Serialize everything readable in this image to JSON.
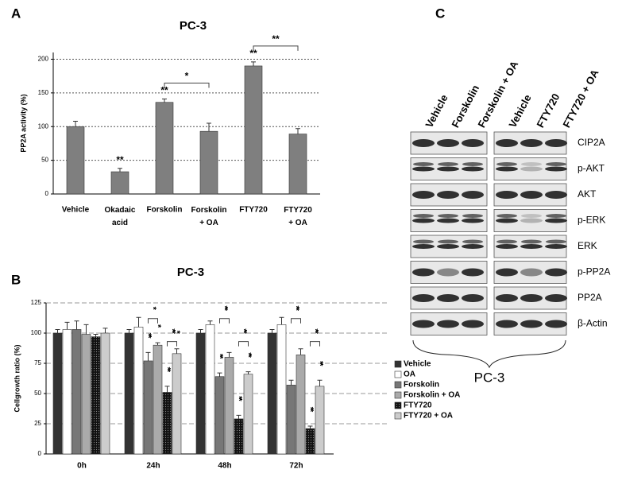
{
  "chart_data": [
    {
      "type": "bar",
      "panel": "A",
      "title": "PC-3",
      "y_label": "PP2A activity (%)",
      "categories": [
        "Vehicle",
        "Okadaic acid",
        "Forskolin",
        "Forskolin + OA",
        "FTY720",
        "FTY720 + OA"
      ],
      "values": [
        100,
        33,
        136,
        93,
        190,
        89
      ],
      "errors": [
        8,
        5,
        5,
        12,
        6,
        8
      ],
      "color": "#7f7f7f",
      "ylim": [
        0,
        210
      ],
      "yticks": [
        0,
        50,
        100,
        150,
        200
      ],
      "grid": true,
      "annotations": [
        {
          "text": "**",
          "index": 1
        },
        {
          "text": "**",
          "index": 2
        },
        {
          "text": "**",
          "index": 4
        }
      ],
      "brackets": [
        {
          "text": "*",
          "from": 2,
          "to": 3
        },
        {
          "text": "**",
          "from": 4,
          "to": 5
        }
      ]
    },
    {
      "type": "grouped_bar",
      "panel": "B",
      "title": "PC-3",
      "y_label": "Cellgrowth ratio (%)",
      "categories": [
        "0h",
        "24h",
        "48h",
        "72h"
      ],
      "series": [
        {
          "name": "Vehicle",
          "color": "#333333",
          "values": [
            100,
            100,
            100,
            100
          ],
          "errors": [
            3,
            3,
            3,
            3
          ]
        },
        {
          "name": "OA",
          "color": "#ffffff",
          "values": [
            103,
            105,
            107,
            107
          ],
          "errors": [
            6,
            8,
            3,
            6
          ]
        },
        {
          "name": "Forskolin",
          "color": "#777777",
          "values": [
            103,
            77,
            64,
            57
          ],
          "errors": [
            7,
            7,
            3,
            4
          ]
        },
        {
          "name": "Forskolin + OA",
          "color": "#aaaaaa",
          "values": [
            99,
            90,
            80,
            82
          ],
          "errors": [
            8,
            2,
            4,
            5
          ]
        },
        {
          "name": "FTY720",
          "color": "dots",
          "values": [
            97,
            51,
            29,
            21
          ],
          "errors": [
            2,
            5,
            3,
            2
          ]
        },
        {
          "name": "FTY720 + OA",
          "color": "#cccccc",
          "values": [
            100,
            83,
            66,
            56
          ],
          "errors": [
            4,
            4,
            2,
            5
          ]
        }
      ],
      "ylim": [
        0,
        125
      ],
      "yticks": [
        0,
        25,
        50,
        75,
        100,
        125
      ],
      "grid": true,
      "annotations": [
        {
          "text": "**",
          "group": 1,
          "series": 2
        },
        {
          "text": "*",
          "group": 1,
          "series": 3
        },
        {
          "text": "**",
          "group": 1,
          "series": 4
        },
        {
          "text": "*",
          "group": 1,
          "series": 5
        },
        {
          "text": "**",
          "group": 2,
          "series": 2
        },
        {
          "text": "**",
          "group": 2,
          "series": 4
        },
        {
          "text": "**",
          "group": 2,
          "series": 5
        },
        {
          "text": "**",
          "group": 3,
          "series": 4
        },
        {
          "text": "**",
          "group": 3,
          "series": 5
        }
      ],
      "brackets": [
        {
          "text": "*",
          "group": 1,
          "from": 2,
          "to": 3
        },
        {
          "text": "**",
          "group": 1,
          "from": 4,
          "to": 5
        },
        {
          "text": "**",
          "group": 2,
          "from": 2,
          "to": 3
        },
        {
          "text": "**",
          "group": 2,
          "from": 4,
          "to": 5
        },
        {
          "text": "**",
          "group": 3,
          "from": 2,
          "to": 3
        },
        {
          "text": "**",
          "group": 3,
          "from": 4,
          "to": 5
        }
      ]
    }
  ],
  "blot": {
    "panel": "C",
    "lanes": [
      "Vehicle",
      "Forskolin",
      "Forskolin + OA",
      "Vehicle",
      "FTY720",
      "FTY720 + OA"
    ],
    "proteins": [
      "CIP2A",
      "p-AKT",
      "AKT",
      "p-ERK",
      "ERK",
      "p-PP2A",
      "PP2A",
      "β-Actin"
    ],
    "cell_line": "PC-3"
  }
}
